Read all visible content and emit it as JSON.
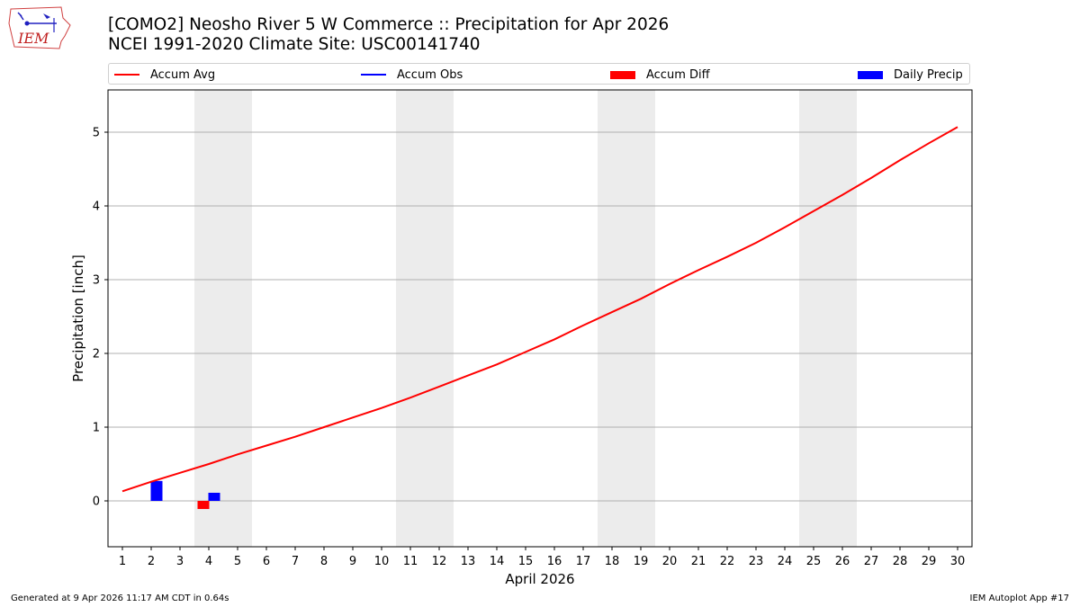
{
  "header": {
    "title_line1": "[COMO2] Neosho River 5 W Commerce :: Precipitation for Apr 2026",
    "title_line2": "NCEI 1991-2020 Climate Site: USC00141740",
    "logo_text": "IEM"
  },
  "legend": {
    "items": [
      {
        "label": "Accum Avg",
        "type": "line",
        "color": "#ff0000"
      },
      {
        "label": "Accum Obs",
        "type": "line",
        "color": "#0000ff"
      },
      {
        "label": "Accum Diff",
        "type": "patch",
        "color": "#ff0000"
      },
      {
        "label": "Daily Precip",
        "type": "patch",
        "color": "#0000ff"
      }
    ]
  },
  "footer": {
    "generated": "Generated at 9 Apr 2026 11:17 AM CDT in 0.64s",
    "app": "IEM Autoplot App #17"
  },
  "chart_data": {
    "type": "line",
    "title": "[COMO2] Neosho River 5 W Commerce :: Precipitation for Apr 2026",
    "subtitle": "NCEI 1991-2020 Climate Site: USC00141740",
    "xlabel": "April 2026",
    "ylabel": "Precipitation [inch]",
    "x": [
      1,
      2,
      3,
      4,
      5,
      6,
      7,
      8,
      9,
      10,
      11,
      12,
      13,
      14,
      15,
      16,
      17,
      18,
      19,
      20,
      21,
      22,
      23,
      24,
      25,
      26,
      27,
      28,
      29,
      30
    ],
    "xlim": [
      0.5,
      30.5
    ],
    "ylim": [
      -0.6,
      5.6
    ],
    "yticks": [
      0,
      1,
      2,
      3,
      4,
      5
    ],
    "grid": "y",
    "legend_position": "top",
    "weekend_shading": [
      [
        3.5,
        5.5
      ],
      [
        10.5,
        12.5
      ],
      [
        17.5,
        19.5
      ],
      [
        24.5,
        26.5
      ]
    ],
    "series": [
      {
        "name": "Accum Avg",
        "type": "line",
        "color": "#ff0000",
        "values": [
          0.13,
          0.26,
          0.38,
          0.5,
          0.63,
          0.75,
          0.87,
          1.0,
          1.13,
          1.26,
          1.4,
          1.55,
          1.7,
          1.85,
          2.02,
          2.19,
          2.38,
          2.56,
          2.74,
          2.94,
          3.13,
          3.31,
          3.5,
          3.71,
          3.93,
          4.15,
          4.38,
          4.62,
          4.85,
          5.07
        ]
      },
      {
        "name": "Accum Obs",
        "type": "line",
        "color": "#0000ff",
        "values": []
      },
      {
        "name": "Accum Diff",
        "type": "bar",
        "color": "#ff0000",
        "x": [
          4
        ],
        "values": [
          -0.11
        ]
      },
      {
        "name": "Daily Precip",
        "type": "bar",
        "color": "#0000ff",
        "x": [
          2,
          4
        ],
        "values": [
          0.27,
          0.11
        ]
      }
    ]
  }
}
